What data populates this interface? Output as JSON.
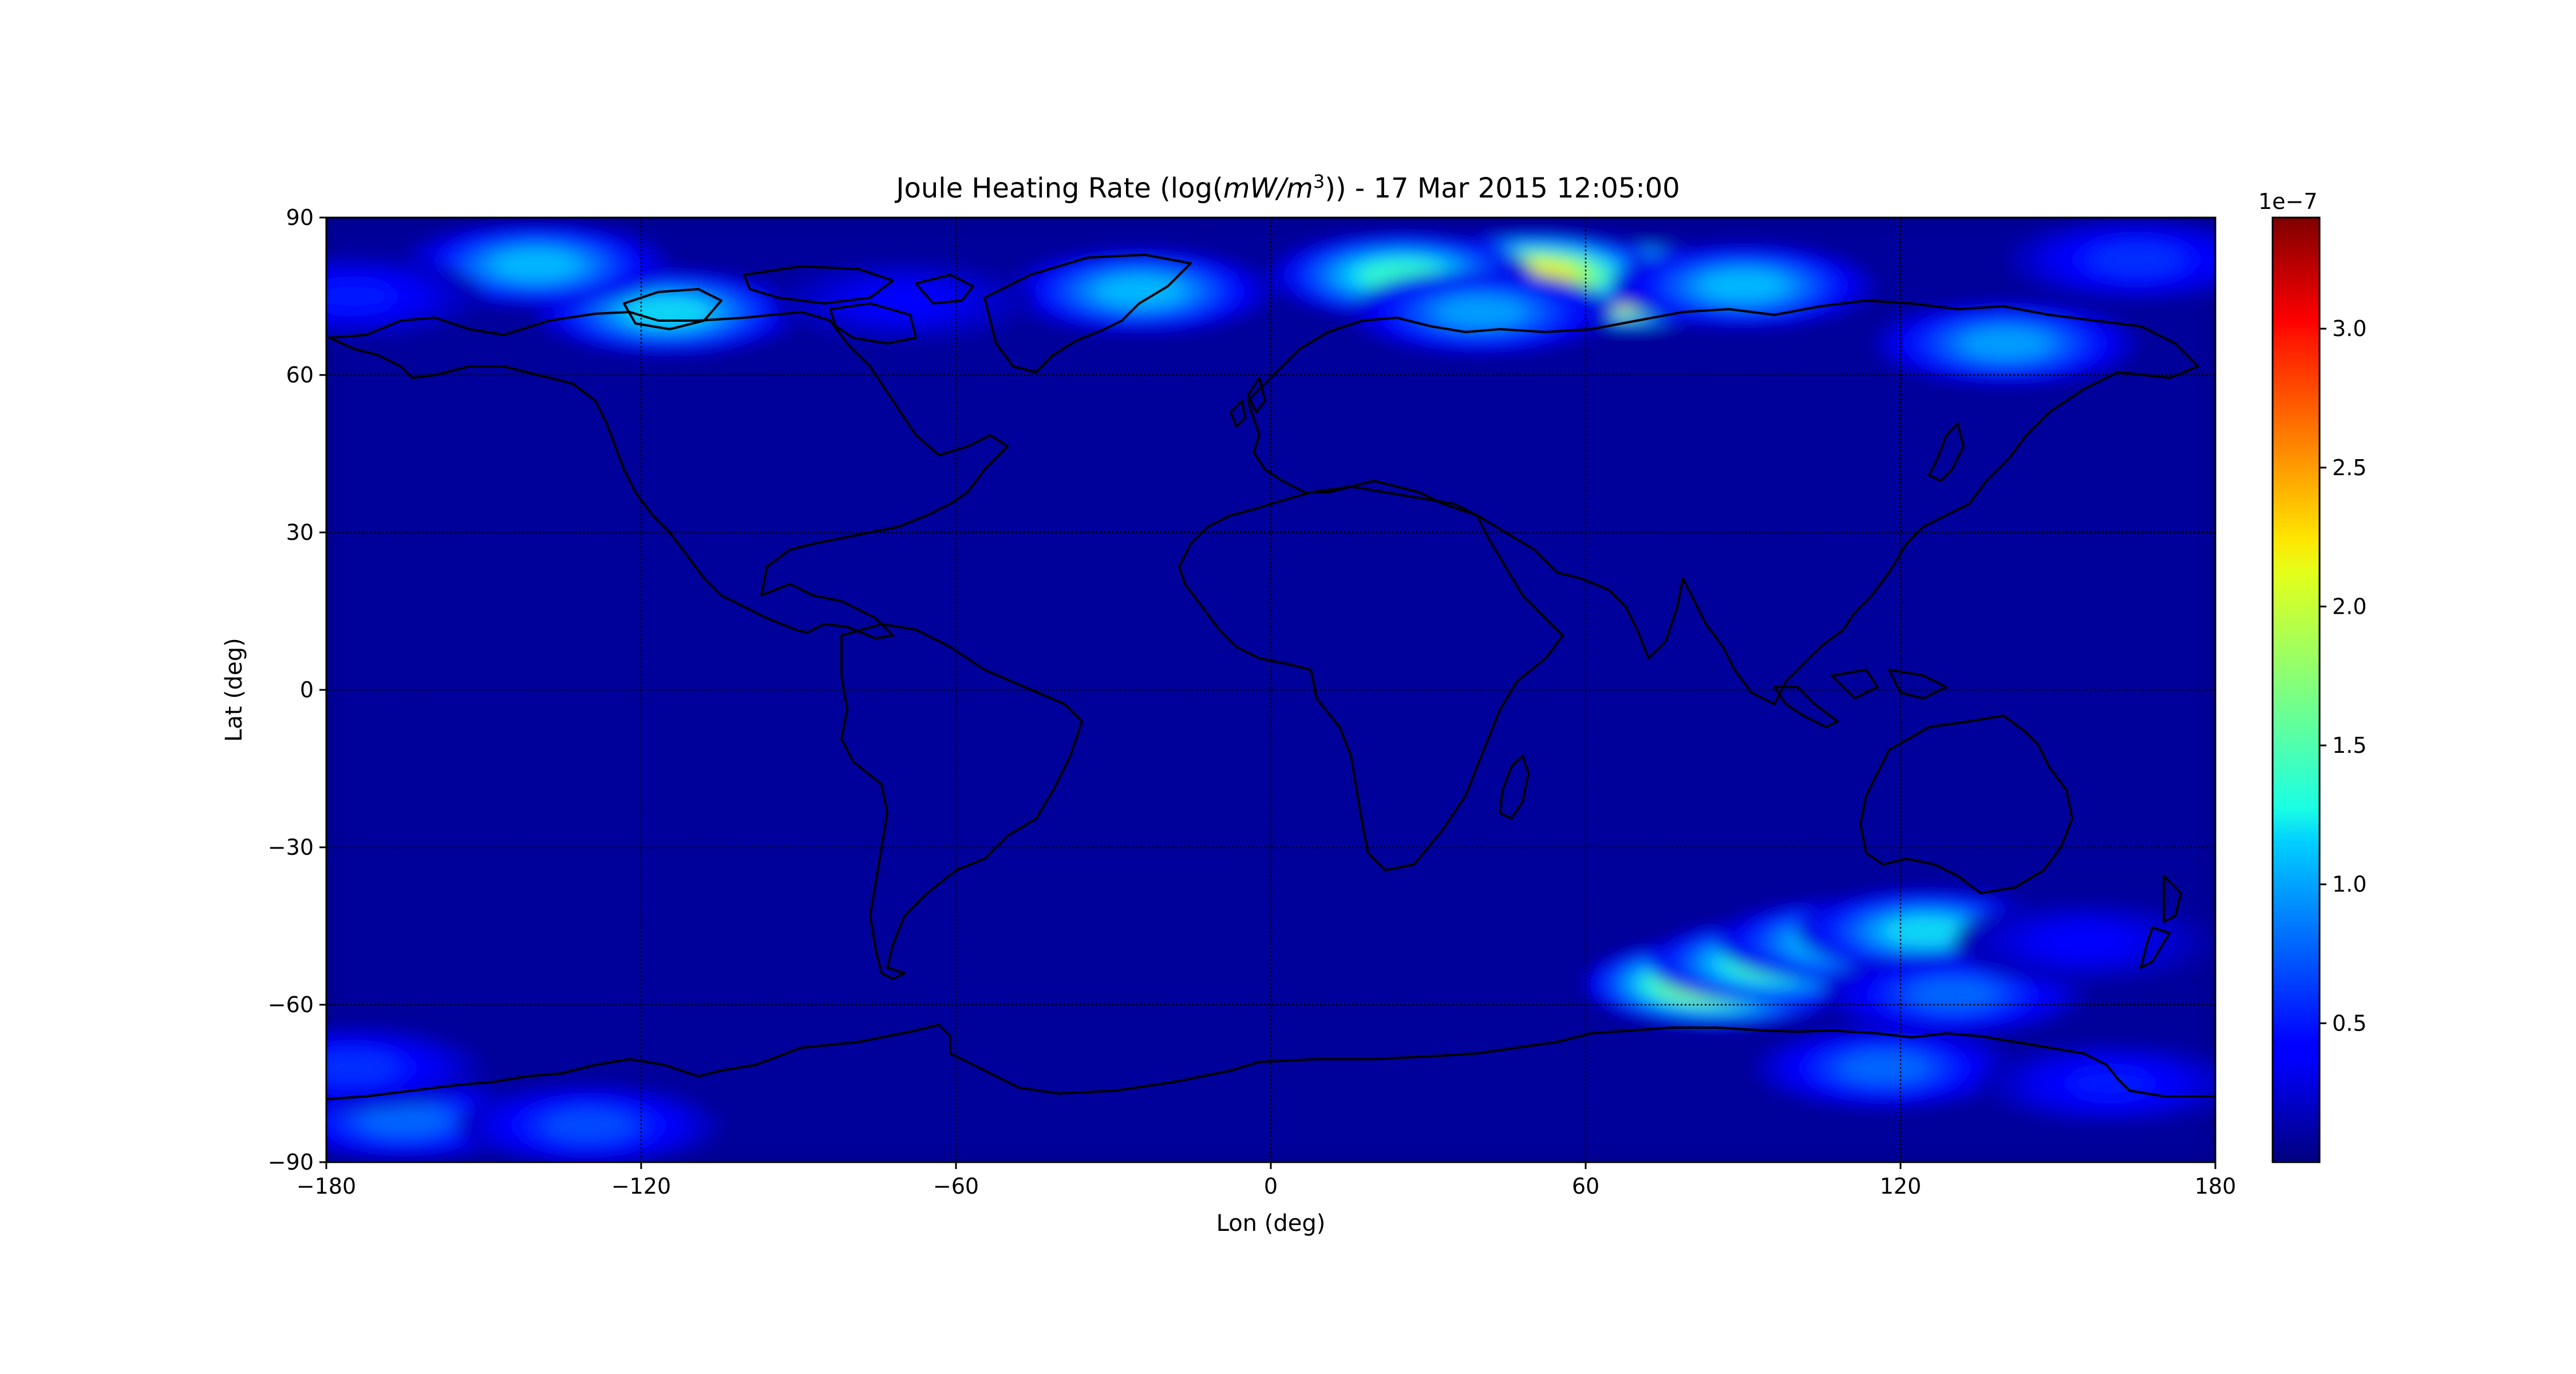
{
  "chart_data": {
    "type": "heatmap",
    "title_prefix": "Joule Heating Rate (log(",
    "title_unit_italic": "mW/m",
    "title_unit_exponent": "3",
    "title_suffix": ")) - 17 Mar 2015 12:05:00",
    "xlabel": "Lon (deg)",
    "ylabel": "Lat (deg)",
    "xlim": [
      -180,
      180
    ],
    "ylim": [
      -90,
      90
    ],
    "xticks": [
      -180,
      -120,
      -60,
      0,
      60,
      120,
      180
    ],
    "yticks": [
      -90,
      -60,
      -30,
      0,
      30,
      60,
      90
    ],
    "xtick_labels": [
      "−180",
      "−120",
      "−60",
      "0",
      "60",
      "120",
      "180"
    ],
    "ytick_labels": [
      "−90",
      "−60",
      "−30",
      "0",
      "30",
      "60",
      "90"
    ],
    "grid": true,
    "colormap": "jet",
    "colorbar": {
      "range": [
        0.0,
        3.4
      ],
      "ticks": [
        0.5,
        1.0,
        1.5,
        2.0,
        2.5,
        3.0
      ],
      "tick_labels": [
        "0.5",
        "1.0",
        "1.5",
        "2.0",
        "2.5",
        "3.0"
      ],
      "offset_label": "1e−7"
    },
    "background_level": 0.08,
    "hotspots": [
      {
        "lon": 68,
        "lat": 77,
        "value": 3.3
      },
      {
        "lon": 50,
        "lat": 79,
        "value": 2.2
      },
      {
        "lon": 25,
        "lat": 79,
        "value": 1.4
      },
      {
        "lon": 90,
        "lat": 77,
        "value": 1.1
      },
      {
        "lon": 40,
        "lat": 72,
        "value": 1.0
      },
      {
        "lon": -25,
        "lat": 76,
        "value": 1.1
      },
      {
        "lon": -115,
        "lat": 72,
        "value": 1.2
      },
      {
        "lon": -140,
        "lat": 81,
        "value": 1.1
      },
      {
        "lon": 140,
        "lat": 66,
        "value": 1.0
      },
      {
        "lon": 165,
        "lat": 82,
        "value": 0.6
      },
      {
        "lon": -175,
        "lat": 75,
        "value": 0.5
      },
      {
        "lon": -70,
        "lat": 74,
        "value": 0.4
      },
      {
        "lon": 85,
        "lat": -56,
        "value": 2.0
      },
      {
        "lon": 97,
        "lat": -52,
        "value": 1.6
      },
      {
        "lon": 110,
        "lat": -48,
        "value": 1.3
      },
      {
        "lon": 125,
        "lat": -46,
        "value": 1.2
      },
      {
        "lon": 130,
        "lat": -58,
        "value": 0.8
      },
      {
        "lon": 117,
        "lat": -72,
        "value": 0.8
      },
      {
        "lon": -165,
        "lat": -82,
        "value": 0.8
      },
      {
        "lon": -130,
        "lat": -83,
        "value": 0.7
      },
      {
        "lon": -175,
        "lat": -72,
        "value": 0.6
      },
      {
        "lon": 160,
        "lat": -75,
        "value": 0.5
      },
      {
        "lon": 155,
        "lat": -48,
        "value": 0.4
      }
    ]
  }
}
